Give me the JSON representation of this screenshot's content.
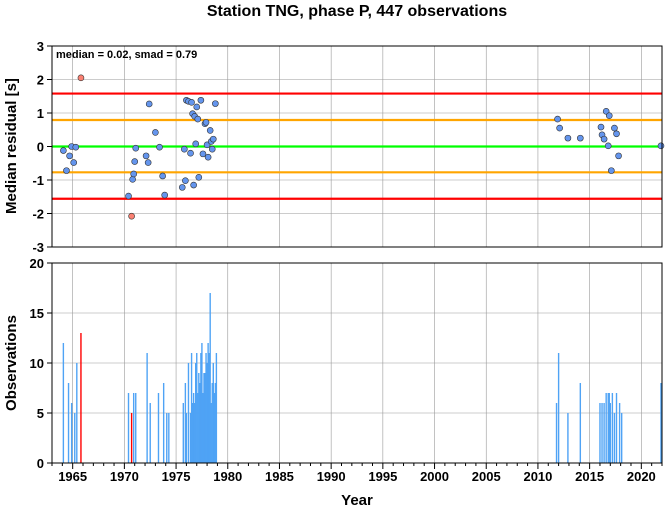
{
  "chart_data": [
    {
      "type": "scatter",
      "title": "Station TNG, phase P, 447 observations",
      "annotation": "median = 0.02, smad = 0.79",
      "ylabel": "Median residual [s]",
      "xlim": [
        1963,
        2022
      ],
      "ylim": [
        -3,
        3
      ],
      "yticks": [
        "-3",
        "-2",
        "-1",
        "0",
        "1",
        "2",
        "3"
      ],
      "grid": true,
      "reference_lines": [
        {
          "y": 1.58,
          "color": "#ff0000"
        },
        {
          "y": 0.79,
          "color": "#ffa500"
        },
        {
          "y": 0.0,
          "color": "#00ff00"
        },
        {
          "y": -0.77,
          "color": "#ffa500"
        },
        {
          "y": -1.56,
          "color": "#ff0000"
        }
      ],
      "series": [
        {
          "color": "#6495ed",
          "points": [
            [
              1964.1,
              -0.12
            ],
            [
              1964.4,
              -0.72
            ],
            [
              1964.7,
              -0.28
            ],
            [
              1964.9,
              0.0
            ],
            [
              1965.1,
              -0.48
            ],
            [
              1965.3,
              -0.02
            ],
            [
              1970.4,
              -1.48
            ],
            [
              1970.8,
              -0.98
            ],
            [
              1970.9,
              -0.82
            ],
            [
              1971.0,
              -0.45
            ],
            [
              1971.1,
              -0.05
            ],
            [
              1972.1,
              -0.28
            ],
            [
              1972.3,
              -0.48
            ],
            [
              1972.4,
              1.27
            ],
            [
              1973.0,
              0.42
            ],
            [
              1973.4,
              -0.02
            ],
            [
              1973.7,
              -0.88
            ],
            [
              1973.9,
              -1.45
            ],
            [
              1975.6,
              -1.22
            ],
            [
              1975.8,
              -0.08
            ],
            [
              1975.9,
              -1.02
            ],
            [
              1976.0,
              1.38
            ],
            [
              1976.2,
              1.35
            ],
            [
              1976.4,
              -0.2
            ],
            [
              1976.5,
              1.32
            ],
            [
              1976.6,
              0.98
            ],
            [
              1976.7,
              -1.15
            ],
            [
              1976.8,
              0.9
            ],
            [
              1976.9,
              0.08
            ],
            [
              1977.0,
              1.18
            ],
            [
              1977.1,
              0.82
            ],
            [
              1977.2,
              -0.92
            ],
            [
              1977.4,
              1.38
            ],
            [
              1977.6,
              -0.22
            ],
            [
              1977.8,
              0.68
            ],
            [
              1977.9,
              0.72
            ],
            [
              1978.0,
              0.05
            ],
            [
              1978.1,
              -0.32
            ],
            [
              1978.3,
              0.48
            ],
            [
              1978.4,
              0.15
            ],
            [
              1978.5,
              -0.08
            ],
            [
              1978.6,
              0.22
            ],
            [
              1978.8,
              1.28
            ],
            [
              2011.9,
              0.82
            ],
            [
              2012.1,
              0.55
            ],
            [
              2012.9,
              0.25
            ],
            [
              2014.1,
              0.25
            ],
            [
              2016.1,
              0.58
            ],
            [
              2016.2,
              0.35
            ],
            [
              2016.4,
              0.22
            ],
            [
              2016.6,
              1.05
            ],
            [
              2016.8,
              0.02
            ],
            [
              2016.9,
              0.92
            ],
            [
              2017.1,
              -0.72
            ],
            [
              2017.4,
              0.55
            ],
            [
              2017.6,
              0.38
            ],
            [
              2017.8,
              -0.28
            ],
            [
              2021.9,
              0.02
            ]
          ]
        },
        {
          "color": "#fa8072",
          "points": [
            [
              1965.8,
              2.05
            ],
            [
              1970.7,
              -2.08
            ]
          ]
        }
      ]
    },
    {
      "type": "bar",
      "xlabel": "Year",
      "ylabel": "Observations",
      "xlim": [
        1963,
        2022
      ],
      "ylim": [
        0,
        20
      ],
      "xticks": [
        "1965",
        "1970",
        "1975",
        "1980",
        "1985",
        "1990",
        "1995",
        "2000",
        "2005",
        "2010",
        "2015",
        "2020"
      ],
      "yticks": [
        "0",
        "5",
        "10",
        "15",
        "20"
      ],
      "grid": true,
      "series": [
        {
          "color": "#4fa3f5",
          "bars": [
            [
              1964.1,
              12
            ],
            [
              1964.6,
              8
            ],
            [
              1964.9,
              6
            ],
            [
              1965.2,
              5
            ],
            [
              1965.4,
              10
            ],
            [
              1970.4,
              7
            ],
            [
              1970.9,
              7
            ],
            [
              1971.1,
              7
            ],
            [
              1972.2,
              11
            ],
            [
              1972.5,
              6
            ],
            [
              1973.3,
              7
            ],
            [
              1973.8,
              8
            ],
            [
              1974.1,
              5
            ],
            [
              1974.3,
              5
            ],
            [
              1975.7,
              6
            ],
            [
              1975.9,
              8
            ],
            [
              1976.0,
              5
            ],
            [
              1976.2,
              10
            ],
            [
              1976.4,
              5
            ],
            [
              1976.5,
              11
            ],
            [
              1976.6,
              6
            ],
            [
              1976.7,
              7
            ],
            [
              1976.8,
              6
            ],
            [
              1976.9,
              10
            ],
            [
              1977.0,
              11
            ],
            [
              1977.1,
              7
            ],
            [
              1977.2,
              9
            ],
            [
              1977.3,
              8
            ],
            [
              1977.4,
              11
            ],
            [
              1977.5,
              12
            ],
            [
              1977.6,
              7
            ],
            [
              1977.7,
              9
            ],
            [
              1977.8,
              9
            ],
            [
              1977.9,
              11
            ],
            [
              1978.0,
              10
            ],
            [
              1978.1,
              12
            ],
            [
              1978.2,
              11
            ],
            [
              1978.3,
              17
            ],
            [
              1978.4,
              6
            ],
            [
              1978.5,
              8
            ],
            [
              1978.6,
              10
            ],
            [
              1978.7,
              7
            ],
            [
              1978.8,
              8
            ],
            [
              1978.9,
              11
            ],
            [
              2011.8,
              6
            ],
            [
              2012.0,
              11
            ],
            [
              2012.9,
              5
            ],
            [
              2014.1,
              8
            ],
            [
              2016.0,
              6
            ],
            [
              2016.2,
              6
            ],
            [
              2016.4,
              6
            ],
            [
              2016.6,
              7
            ],
            [
              2016.8,
              7
            ],
            [
              2016.9,
              7
            ],
            [
              2017.0,
              6
            ],
            [
              2017.2,
              7
            ],
            [
              2017.4,
              5
            ],
            [
              2017.6,
              7
            ],
            [
              2017.9,
              6
            ],
            [
              2018.1,
              5
            ],
            [
              2021.9,
              8
            ]
          ]
        },
        {
          "color": "#ff0000",
          "bars": [
            [
              1965.8,
              13
            ],
            [
              1970.7,
              5
            ]
          ]
        }
      ]
    }
  ]
}
